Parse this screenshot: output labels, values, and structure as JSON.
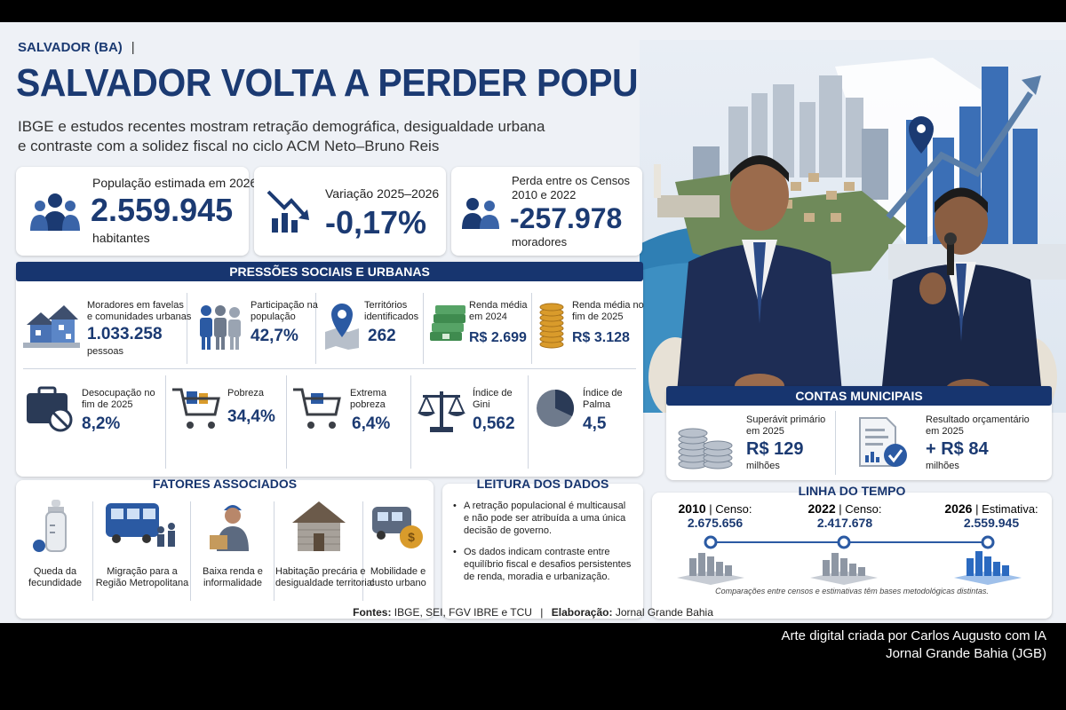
{
  "header": {
    "location": "SALVADOR (BA)",
    "title": "SALVADOR VOLTA A PERDER POPULAÇÃO",
    "subtitle_line1": "IBGE e estudos recentes mostram retração demográfica, desigualdade urbana",
    "subtitle_line2": "e contraste com a solidez fiscal no ciclo ACM Neto–Bruno Reis"
  },
  "kpis": [
    {
      "label": "População estimada em 2026",
      "value": "2.559.945",
      "unit": "habitantes",
      "icon": "people-icon"
    },
    {
      "label": "Variação 2025–2026",
      "value": "-0,17%",
      "icon": "down-trend-icon"
    },
    {
      "label_line1": "Perda entre os Censos",
      "label_line2": "2010 e 2022",
      "value": "-257.978",
      "unit": "moradores",
      "icon": "people-icon"
    }
  ],
  "pressures": {
    "title": "PRESSÕES SOCIAIS E URBANAS",
    "row1": [
      {
        "l1": "Moradores em favelas",
        "l2": "e comunidades urbanas",
        "value": "1.033.258",
        "unit": "pessoas",
        "icon": "houses-icon"
      },
      {
        "l1": "Participação na",
        "l2": "população",
        "value": "42,7%",
        "icon": "people-icon"
      },
      {
        "l1": "Territórios",
        "l2": "identificados",
        "value": "262",
        "icon": "map-pin-icon"
      },
      {
        "l1": "Renda média",
        "l2": "em 2024",
        "value": "R$ 2.699",
        "icon": "cash-icon"
      },
      {
        "l1": "Renda média no",
        "l2": "fim de 2025",
        "value": "R$ 3.128",
        "icon": "coins-icon"
      }
    ],
    "row2": [
      {
        "l1": "Desocupação no",
        "l2": "fim de 2025",
        "value": "8,2%",
        "icon": "briefcase-icon"
      },
      {
        "l1": "Pobreza",
        "l2": "",
        "value": "34,4%",
        "icon": "cart-icon"
      },
      {
        "l1": "Extrema",
        "l2": "pobreza",
        "value": "6,4%",
        "icon": "cart-icon"
      },
      {
        "l1": "Índice de",
        "l2": "Gini",
        "value": "0,562",
        "icon": "scale-icon"
      },
      {
        "l1": "Índice de",
        "l2": "Palma",
        "value": "4,5",
        "icon": "pie-icon"
      }
    ]
  },
  "factors": {
    "title": "FATORES ASSOCIADOS",
    "items": [
      {
        "l1": "Queda da",
        "l2": "fecundidade",
        "icon": "baby-bottle-icon"
      },
      {
        "l1": "Migração para a",
        "l2": "Região Metropolitana",
        "icon": "bus-icon"
      },
      {
        "l1": "Baixa renda e",
        "l2": "informalidade",
        "icon": "worker-icon"
      },
      {
        "l1": "Habitação precária e",
        "l2": "desigualdade territorial",
        "icon": "house-icon"
      },
      {
        "l1": "Mobilidade e",
        "l2": "custo urbano",
        "icon": "van-icon"
      }
    ]
  },
  "reading": {
    "title": "LEITURA DOS DADOS",
    "b1": [
      "A retração populacional é multicausal",
      "e não pode ser atribuída a uma única",
      "decisão de governo."
    ],
    "b2": [
      "Os dados indicam contraste entre",
      "equilíbrio fiscal e desafios persistentes",
      "de renda, moradia e urbanização."
    ]
  },
  "accounts": {
    "title": "CONTAS MUNICIPAIS",
    "items": [
      {
        "l1": "Superávit primário",
        "l2": "em 2025",
        "value": "R$ 129",
        "unit": "milhões",
        "icon": "coins-icon"
      },
      {
        "l1": "Resultado orçamentário",
        "l2": "em 2025",
        "value": "+ R$ 84",
        "unit": "milhões",
        "icon": "document-check-icon"
      }
    ]
  },
  "timeline": {
    "title": "LINHA DO TEMPO",
    "points": [
      {
        "year": "2010",
        "kind": "Censo:",
        "value": "2.675.656"
      },
      {
        "year": "2022",
        "kind": "Censo:",
        "value": "2.417.678"
      },
      {
        "year": "2026",
        "kind": "Estimativa:",
        "value": "2.559.945"
      }
    ],
    "note": "Comparações entre censos e estimativas têm bases metodológicas distintas."
  },
  "footer": {
    "sources_label": "Fontes:",
    "sources": "IBGE, SEI, FGV IBRE e TCU",
    "sep": "|",
    "elab_label": "Elaboração:",
    "elab": "Jornal Grande Bahia"
  },
  "credit": {
    "line1": "Arte digital criada por Carlos Augusto com IA",
    "line2": "Jornal Grande Bahia (JGB)"
  },
  "colors": {
    "navy": "#17356f",
    "text_blue": "#1b3a72",
    "background": "#eef1f6"
  }
}
